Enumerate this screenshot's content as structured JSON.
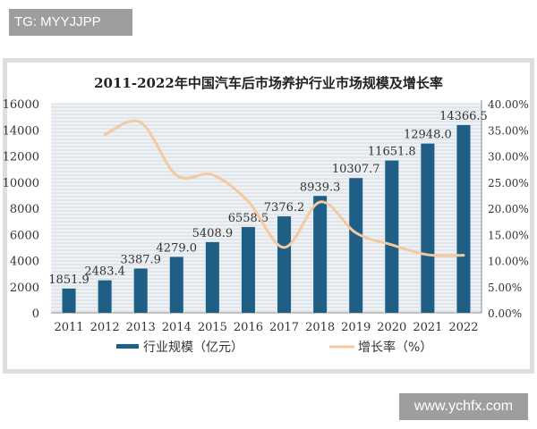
{
  "watermarks": {
    "top_left": "TG: MYYJJPP",
    "bottom_right": "www.ychfx.com"
  },
  "colors": {
    "bar": "#1f5f85",
    "line": "#f5c9a0",
    "grid": "#c9d3dc",
    "plot_bg": "#eef2f5"
  },
  "chart_data": {
    "type": "bar+line",
    "title": "2011-2022年中国汽车后市场养护行业市场规模及增长率",
    "categories": [
      "2011",
      "2012",
      "2013",
      "2014",
      "2015",
      "2016",
      "2017",
      "2018",
      "2019",
      "2020",
      "2021",
      "2022"
    ],
    "series": [
      {
        "name": "行业规模（亿元）",
        "type": "bar",
        "axis": "left",
        "values": [
          1851.9,
          2483.4,
          3387.9,
          4279.0,
          5408.9,
          6558.5,
          7376.2,
          8939.3,
          10307.7,
          11651.8,
          12948.0,
          14366.5
        ],
        "labels": [
          "1851.9",
          "2483.4",
          "3387.9",
          "4279.0",
          "5408.9",
          "6558.5",
          "7376.2",
          "8939.3",
          "10307.7",
          "11651.8",
          "12948.0",
          "14366.5"
        ]
      },
      {
        "name": "增长率（%）",
        "type": "line",
        "axis": "right",
        "values": [
          null,
          34.1,
          36.4,
          26.3,
          26.4,
          21.3,
          12.5,
          21.2,
          15.3,
          13.0,
          11.1,
          11.0
        ]
      }
    ],
    "left_axis": {
      "range": [
        0,
        16000
      ],
      "ticks": [
        "0",
        "2000",
        "4000",
        "6000",
        "8000",
        "10000",
        "12000",
        "14000",
        "16000"
      ]
    },
    "right_axis": {
      "range": [
        0,
        40
      ],
      "ticks": [
        "0.00%",
        "5.00%",
        "10.00%",
        "15.00%",
        "20.00%",
        "25.00%",
        "30.00%",
        "35.00%",
        "40.00%"
      ]
    },
    "grid": true,
    "legend": "bottom"
  }
}
